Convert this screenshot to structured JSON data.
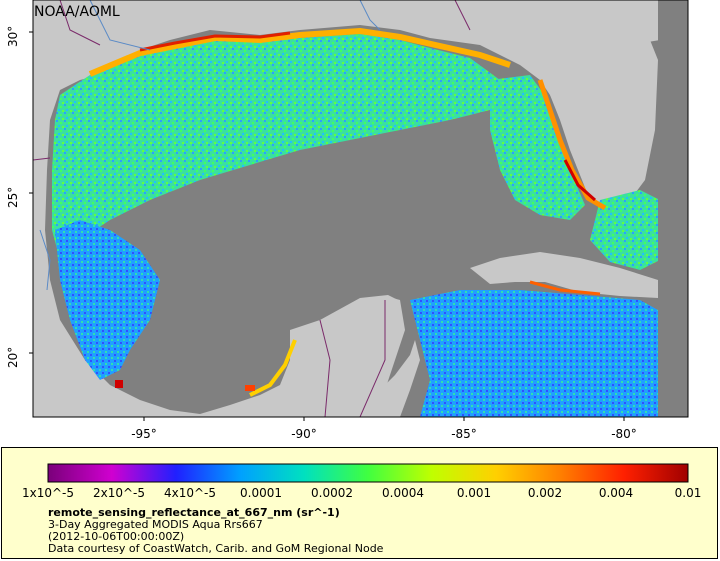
{
  "map": {
    "credit": "NOAA/AOML",
    "x_ticks": [
      "-95°",
      "-90°",
      "-85°",
      "-80°"
    ],
    "y_ticks": [
      "30°",
      "25°",
      "20°"
    ],
    "colors": {
      "ocean_no_data": "#808080",
      "land": "#c8c8c8",
      "border": "#7a2a6a",
      "river": "#5a8ac6"
    }
  },
  "legend": {
    "title": "remote_sensing_reflectance_at_667_nm (sr^-1)",
    "line1": "3-Day Aggregated MODIS Aqua Rrs667",
    "line2": "(2012-10-06T00:00:00Z)",
    "line3": "Data courtesy of CoastWatch, Carib. and GoM Regional Node",
    "ticks": [
      "1x10^-5",
      "2x10^-5",
      "4x10^-5",
      "0.0001",
      "0.0002",
      "0.0004",
      "0.001",
      "0.002",
      "0.004",
      "0.01"
    ],
    "colorbar": [
      "#7a007a",
      "#d000d0",
      "#2020ff",
      "#00a0ff",
      "#00e0c0",
      "#40ff40",
      "#c0ff00",
      "#ffd000",
      "#ff8000",
      "#ff2000",
      "#a00000"
    ]
  }
}
